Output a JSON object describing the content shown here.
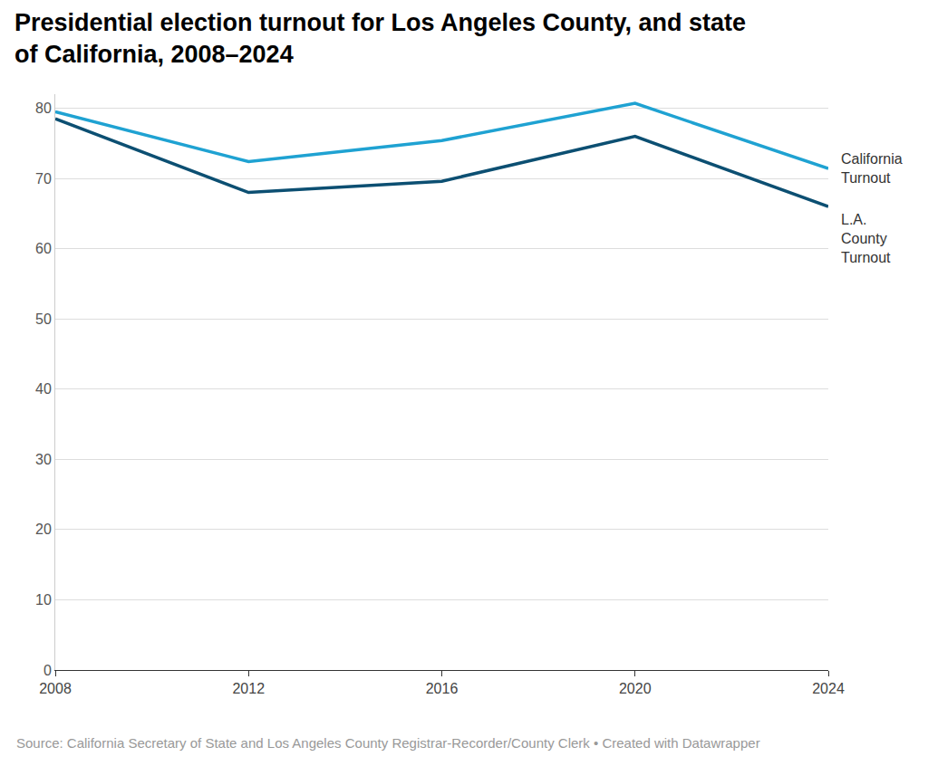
{
  "chart_data": {
    "type": "line",
    "title": "Presidential election turnout for Los Angeles County, and state of California, 2008–2024",
    "source": "Source: California Secretary of State and Los Angeles County Registrar-Recorder/County Clerk • Created with Datawrapper",
    "x": [
      2008,
      2012,
      2016,
      2020,
      2024
    ],
    "series": [
      {
        "name": "California Turnout",
        "color": "#1fa2d2",
        "values": [
          79.5,
          72.4,
          75.4,
          80.7,
          71.4
        ]
      },
      {
        "name": "L.A. County Turnout",
        "color": "#0c4f72",
        "values": [
          78.5,
          68.0,
          69.6,
          76.0,
          66.0
        ]
      }
    ],
    "xlim": [
      2008,
      2024
    ],
    "xticks": [
      2008,
      2012,
      2016,
      2020,
      2024
    ],
    "ylim": [
      0,
      82
    ],
    "yticks": [
      0,
      10,
      20,
      30,
      40,
      50,
      60,
      70,
      80
    ],
    "grid": true
  }
}
